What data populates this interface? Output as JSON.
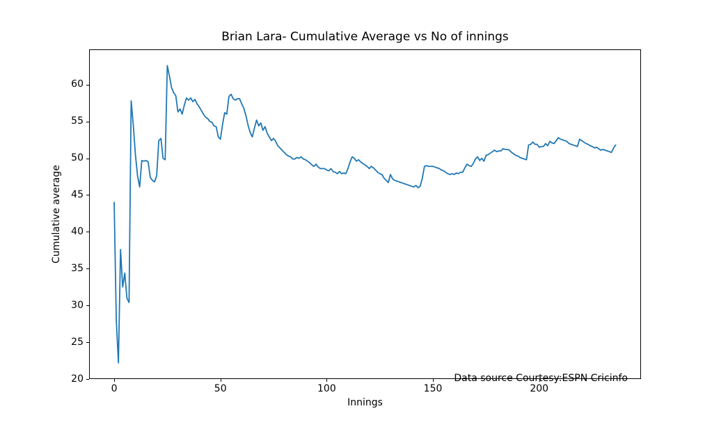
{
  "chart_data": {
    "type": "line",
    "title": "Brian Lara- Cumulative Average vs No of innings",
    "xlabel": "Innings",
    "ylabel": "Cumulative average",
    "annotation": "Data source Courtesy:ESPN Cricinfo",
    "line_color": "#1f77b4",
    "spine_color": "#000000",
    "background_color": "#ffffff",
    "grid": false,
    "legend": "none",
    "x_tick_labels": [
      "0",
      "50",
      "100",
      "150",
      "200"
    ],
    "x_tick_values": [
      0,
      50,
      100,
      150,
      200
    ],
    "y_tick_labels": [
      "20",
      "25",
      "30",
      "35",
      "40",
      "45",
      "50",
      "55",
      "60"
    ],
    "y_tick_values": [
      20,
      25,
      30,
      35,
      40,
      45,
      50,
      55,
      60
    ],
    "xlim": [
      -11.8,
      247.9
    ],
    "ylim": [
      20,
      64.8
    ],
    "x_start": 0,
    "x_step": 1,
    "values": [
      44.0,
      28.0,
      22.2,
      37.6,
      32.5,
      34.4,
      31.0,
      30.4,
      57.8,
      54.5,
      50.5,
      47.6,
      46.1,
      49.7,
      49.6,
      49.7,
      49.5,
      47.4,
      47.0,
      46.8,
      47.6,
      52.4,
      52.7,
      50.0,
      49.8,
      62.6,
      61.2,
      59.6,
      58.9,
      58.5,
      56.3,
      56.7,
      56.0,
      57.2,
      58.2,
      57.9,
      58.2,
      57.7,
      58.0,
      57.4,
      57.0,
      56.5,
      56.0,
      55.6,
      55.4,
      55.0,
      54.9,
      54.4,
      54.3,
      52.9,
      52.6,
      54.6,
      56.2,
      56.0,
      58.4,
      58.7,
      58.1,
      57.9,
      58.1,
      58.1,
      57.4,
      56.8,
      55.8,
      54.5,
      53.5,
      52.9,
      54.1,
      55.2,
      54.4,
      54.8,
      53.8,
      54.3,
      53.4,
      52.9,
      52.4,
      52.7,
      52.3,
      51.7,
      51.4,
      51.1,
      50.8,
      50.5,
      50.3,
      50.2,
      49.9,
      49.9,
      50.1,
      50.0,
      50.2,
      49.9,
      49.8,
      49.6,
      49.4,
      49.1,
      48.9,
      49.2,
      48.8,
      48.6,
      48.6,
      48.6,
      48.4,
      48.3,
      48.6,
      48.2,
      48.1,
      47.9,
      48.2,
      47.9,
      48.0,
      47.9,
      48.6,
      49.5,
      50.2,
      50.0,
      49.6,
      49.8,
      49.5,
      49.3,
      49.1,
      48.9,
      48.6,
      48.9,
      48.7,
      48.4,
      48.1,
      47.9,
      47.8,
      47.3,
      47.0,
      46.7,
      47.8,
      47.2,
      47.0,
      46.9,
      46.8,
      46.7,
      46.6,
      46.5,
      46.4,
      46.3,
      46.2,
      46.1,
      46.3,
      46.0,
      46.2,
      47.3,
      48.9,
      49.0,
      48.9,
      48.9,
      48.9,
      48.8,
      48.7,
      48.6,
      48.4,
      48.3,
      48.1,
      47.9,
      47.8,
      47.9,
      47.8,
      48.0,
      47.9,
      48.1,
      48.1,
      48.7,
      49.2,
      49.0,
      48.9,
      49.3,
      49.9,
      50.2,
      49.7,
      50.0,
      49.6,
      50.4,
      50.5,
      50.7,
      50.9,
      51.1,
      50.9,
      51.0,
      51.0,
      51.3,
      51.2,
      51.2,
      51.1,
      50.8,
      50.6,
      50.4,
      50.3,
      50.1,
      50.0,
      49.9,
      49.8,
      51.8,
      51.9,
      52.2,
      51.9,
      51.9,
      51.5,
      51.6,
      51.6,
      52.0,
      51.7,
      52.3,
      52.1,
      52.0,
      52.4,
      52.8,
      52.6,
      52.5,
      52.4,
      52.3,
      52.0,
      51.9,
      51.8,
      51.7,
      51.6,
      52.6,
      52.4,
      52.2,
      52.0,
      51.9,
      51.7,
      51.6,
      51.4,
      51.5,
      51.3,
      51.1,
      51.2,
      51.1,
      51.0,
      50.9,
      50.8,
      51.4,
      51.8
    ]
  }
}
